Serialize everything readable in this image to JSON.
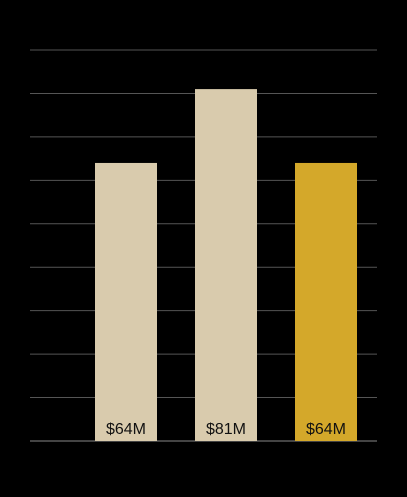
{
  "chart_data": {
    "type": "bar",
    "categories": [
      null,
      null,
      null
    ],
    "values": [
      64,
      81,
      64
    ],
    "value_labels": [
      "$64M",
      "$81M",
      "$64M"
    ],
    "colors": [
      "#d9cbad",
      "#d9cbad",
      "#d4a82a"
    ],
    "ylim": [
      0,
      90
    ],
    "yticks": [
      0,
      10,
      20,
      30,
      40,
      50,
      60,
      70,
      80,
      90
    ],
    "grid": true
  }
}
